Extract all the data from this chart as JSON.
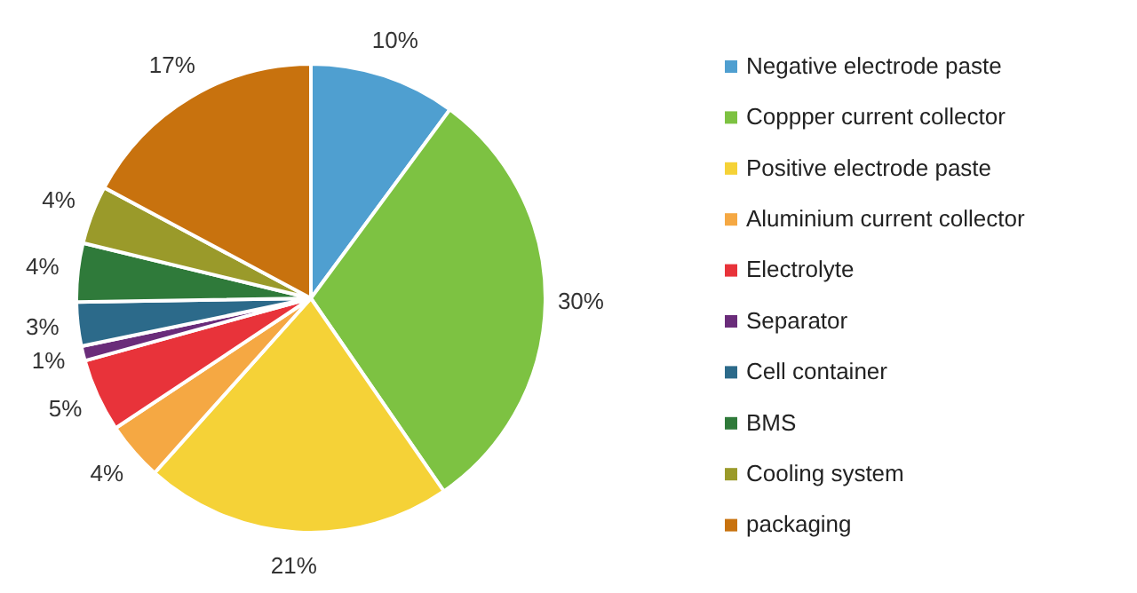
{
  "chart_data": {
    "type": "pie",
    "categories": [
      "Negative electrode paste",
      "Coppper current collector",
      "Positive electrode paste",
      "Aluminium current collector",
      "Electrolyte",
      "Separator",
      "Cell container",
      "BMS",
      "Cooling system",
      "packaging"
    ],
    "values": [
      10,
      30,
      21,
      4,
      5,
      1,
      3,
      4,
      4,
      17
    ],
    "value_labels": [
      "10%",
      "30%",
      "21%",
      "4%",
      "5%",
      "1%",
      "3%",
      "4%",
      "4%",
      "17%"
    ],
    "colors": [
      "#4f9fd0",
      "#7dc242",
      "#f5d237",
      "#f5a843",
      "#e8333a",
      "#6a2c7a",
      "#2c6a8a",
      "#2f7a3a",
      "#9a9a2a",
      "#c8720e"
    ],
    "legend": "right"
  }
}
